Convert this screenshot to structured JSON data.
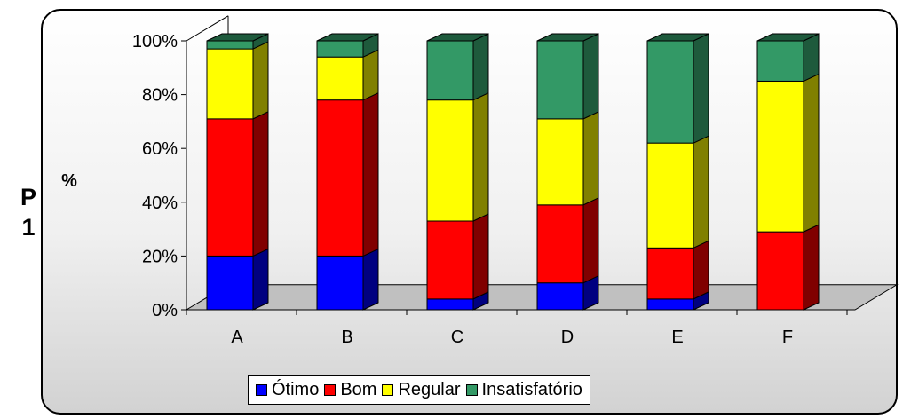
{
  "side_label": [
    "P",
    "1"
  ],
  "chart_data": {
    "type": "bar",
    "stacked": "percent",
    "three_d": true,
    "categories": [
      "A",
      "B",
      "C",
      "D",
      "E",
      "F"
    ],
    "series": [
      {
        "name": "Ótimo",
        "color": "#0000ff",
        "side_color": "#000080",
        "values": [
          20,
          20,
          4,
          10,
          4,
          0
        ]
      },
      {
        "name": "Bom",
        "color": "#ff0000",
        "side_color": "#800000",
        "values": [
          51,
          58,
          29,
          29,
          19,
          29
        ]
      },
      {
        "name": "Regular",
        "color": "#ffff00",
        "side_color": "#808000",
        "values": [
          26,
          16,
          45,
          32,
          39,
          56
        ]
      },
      {
        "name": "Insatisfatório",
        "color": "#339966",
        "side_color": "#1e5a3c",
        "values": [
          3,
          6,
          22,
          29,
          38,
          15
        ]
      }
    ],
    "ylabel": "%",
    "ylim": [
      0,
      100
    ],
    "yticks": [
      "0%",
      "20%",
      "40%",
      "60%",
      "80%",
      "100%"
    ],
    "grid": false,
    "legend": "bottom"
  }
}
